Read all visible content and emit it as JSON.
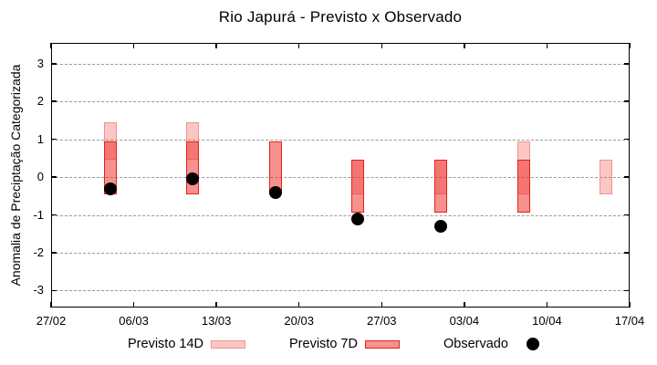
{
  "chart_data": {
    "type": "bar",
    "title": "Rio Japurá - Previsto x Observado",
    "ylabel": "Anomalia de Preciptação Categorizada",
    "xlabel": "",
    "ylim": [
      -3.45,
      3.55
    ],
    "yticks": [
      3,
      2,
      1,
      0,
      -1,
      -2,
      -3
    ],
    "xticks": [
      "27/02",
      "06/03",
      "13/03",
      "20/03",
      "27/03",
      "03/04",
      "10/04",
      "17/04"
    ],
    "x_range": [
      "27/02",
      "17/04"
    ],
    "grid": "horizontal-dashed",
    "grid_color": "#9a9a9a",
    "series": [
      {
        "name": "Previsto 14D",
        "type": "range-bar",
        "fill": "rgba(236,48,40,0.27)",
        "border": "#f0948d",
        "points": [
          {
            "date": "04/03",
            "hi": 1.45,
            "lo": 0.45
          },
          {
            "date": "11/03",
            "hi": 1.45,
            "lo": 0.45
          },
          {
            "date": "25/03",
            "hi": 0.45,
            "lo": -0.45
          },
          {
            "date": "01/04",
            "hi": 0.45,
            "lo": -0.45
          },
          {
            "date": "08/04",
            "hi": 0.95,
            "lo": -0.45
          },
          {
            "date": "15/04",
            "hi": 0.45,
            "lo": -0.45
          }
        ]
      },
      {
        "name": "Previsto 7D",
        "type": "range-bar",
        "fill": "rgba(237,45,38,0.52)",
        "border": "#e2231a",
        "points": [
          {
            "date": "04/03",
            "hi": 0.95,
            "lo": -0.45
          },
          {
            "date": "11/03",
            "hi": 0.95,
            "lo": -0.45
          },
          {
            "date": "18/03",
            "hi": 0.95,
            "lo": -0.45
          },
          {
            "date": "25/03",
            "hi": 0.45,
            "lo": -0.95
          },
          {
            "date": "01/04",
            "hi": 0.45,
            "lo": -0.95
          },
          {
            "date": "08/04",
            "hi": 0.45,
            "lo": -0.95
          }
        ]
      },
      {
        "name": "Observado",
        "type": "scatter",
        "color": "#000000",
        "points": [
          {
            "date": "04/03",
            "y": -0.3
          },
          {
            "date": "11/03",
            "y": -0.05
          },
          {
            "date": "18/03",
            "y": -0.4
          },
          {
            "date": "25/03",
            "y": -1.1
          },
          {
            "date": "01/04",
            "y": -1.3
          }
        ]
      }
    ],
    "legend": {
      "position": "bottom",
      "items": [
        "Previsto 14D",
        "Previsto 7D",
        "Observado"
      ]
    }
  }
}
